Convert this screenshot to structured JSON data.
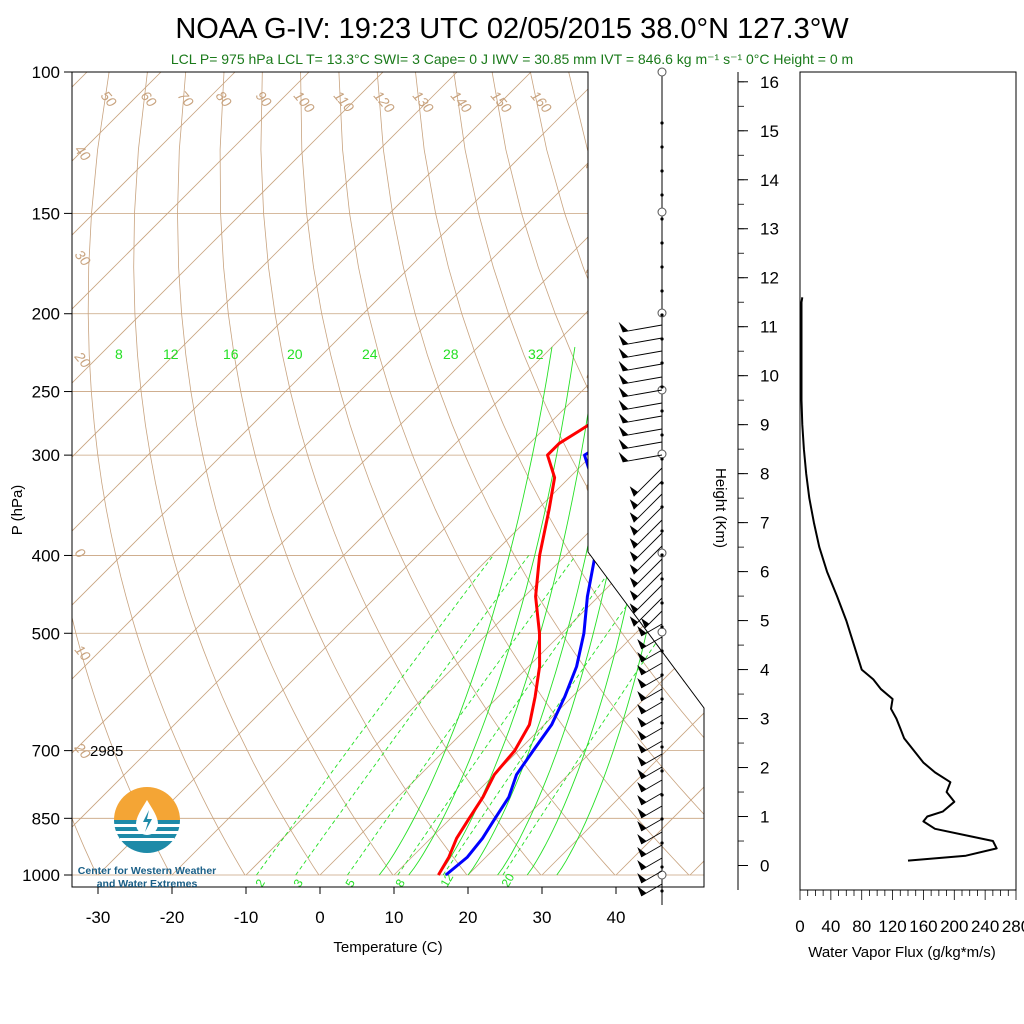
{
  "title": "NOAA G-IV: 19:23 UTC 02/05/2015  38.0°N 127.3°W",
  "subtitle": "LCL P= 975 hPa  LCL T= 13.3°C  SWI= 3  Cape= 0 J  IWV = 30.85 mm  IVT = 846.6 kg m⁻¹ s⁻¹  0°C Height = 0 m",
  "annotation_2985": "2985",
  "logo_text": [
    "Center for Western Weather",
    "and Water Extremes"
  ],
  "colors": {
    "temperature": "#ff0000",
    "dewpoint": "#0000ff",
    "isotherm": "#c8a37f",
    "mixing_ratio": "#25e025"
  },
  "chart_data": [
    {
      "type": "line",
      "name": "skew-t",
      "xlabel": "Temperature (C)",
      "ylabel": "P (hPa)",
      "xlim": [
        -35,
        40
      ],
      "ylim": [
        1000,
        100
      ],
      "x_ticks": [
        "-30",
        "-20",
        "-10",
        "0",
        "10",
        "20",
        "30",
        "40"
      ],
      "y_ticks": [
        "100",
        "150",
        "200",
        "250",
        "300",
        "400",
        "500",
        "700",
        "850",
        "1000"
      ],
      "isotherm_labels": [
        "-40",
        "-30",
        "-20",
        "-10",
        "0",
        "10",
        "20",
        "30"
      ],
      "dry_adiabat_labels": [
        "50",
        "60",
        "70",
        "80",
        "90",
        "100",
        "110",
        "120",
        "130",
        "140",
        "150",
        "160"
      ],
      "moist_adiabat_labels": [
        "8",
        "12",
        "16",
        "20",
        "24",
        "28",
        "32"
      ],
      "mixing_ratio_labels": [
        "2",
        "3",
        "5",
        "8",
        "12",
        "20"
      ],
      "side_labels": [
        "30",
        "20",
        "10",
        "0",
        "10",
        "30"
      ],
      "series": [
        {
          "name": "temperature",
          "p": [
            1000,
            950,
            900,
            850,
            800,
            750,
            700,
            650,
            600,
            550,
            500,
            450,
            400,
            350,
            320,
            300,
            290,
            280,
            260,
            250,
            230,
            210
          ],
          "t": [
            16,
            15,
            13.5,
            12.5,
            11.5,
            10,
            9.5,
            8,
            5,
            1.5,
            -3,
            -8.5,
            -13.5,
            -18.5,
            -22,
            -26,
            -26,
            -25,
            -23,
            -20,
            -17,
            -15
          ]
        },
        {
          "name": "dewpoint",
          "p": [
            1000,
            950,
            900,
            850,
            800,
            750,
            700,
            650,
            600,
            550,
            500,
            450,
            400,
            350,
            320,
            300,
            290,
            280,
            260,
            250,
            230,
            210
          ],
          "t": [
            17,
            17.5,
            17,
            16,
            15,
            13,
            12,
            11,
            9,
            6.5,
            3,
            -1.5,
            -6,
            -12,
            -17,
            -21,
            -20,
            -18,
            -15,
            -13,
            -10,
            -8
          ]
        }
      ]
    },
    {
      "type": "line",
      "name": "water-vapor-flux-profile",
      "xlabel": "Water Vapor Flux (g/kg*m/s)",
      "ylabel": "Height (Km)",
      "xlim": [
        0,
        280
      ],
      "ylim": [
        -0.5,
        16.2
      ],
      "x_ticks": [
        "0",
        "40",
        "80",
        "120",
        "160",
        "200",
        "240",
        "280"
      ],
      "y_ticks": [
        "0",
        "1",
        "2",
        "3",
        "4",
        "5",
        "6",
        "7",
        "8",
        "9",
        "10",
        "11",
        "12",
        "13",
        "14",
        "15",
        "16"
      ],
      "series": [
        {
          "name": "flux",
          "height_km": [
            0.1,
            0.2,
            0.35,
            0.5,
            0.6,
            0.75,
            0.9,
            1.0,
            1.1,
            1.3,
            1.5,
            1.7,
            1.9,
            2.1,
            2.3,
            2.6,
            2.8,
            3.0,
            3.2,
            3.4,
            3.6,
            3.8,
            4.0,
            4.5,
            5.0,
            5.5,
            6.0,
            6.5,
            7.0,
            7.5,
            8.0,
            8.5,
            9.0,
            9.5,
            10.0,
            10.5,
            11.0,
            11.5,
            11.6
          ],
          "flux": [
            140,
            215,
            255,
            250,
            220,
            175,
            160,
            165,
            185,
            200,
            190,
            195,
            175,
            160,
            150,
            135,
            130,
            125,
            118,
            120,
            105,
            95,
            80,
            70,
            60,
            48,
            35,
            25,
            18,
            12,
            8,
            5,
            3,
            2,
            2,
            2,
            2,
            2,
            3
          ]
        }
      ]
    }
  ]
}
